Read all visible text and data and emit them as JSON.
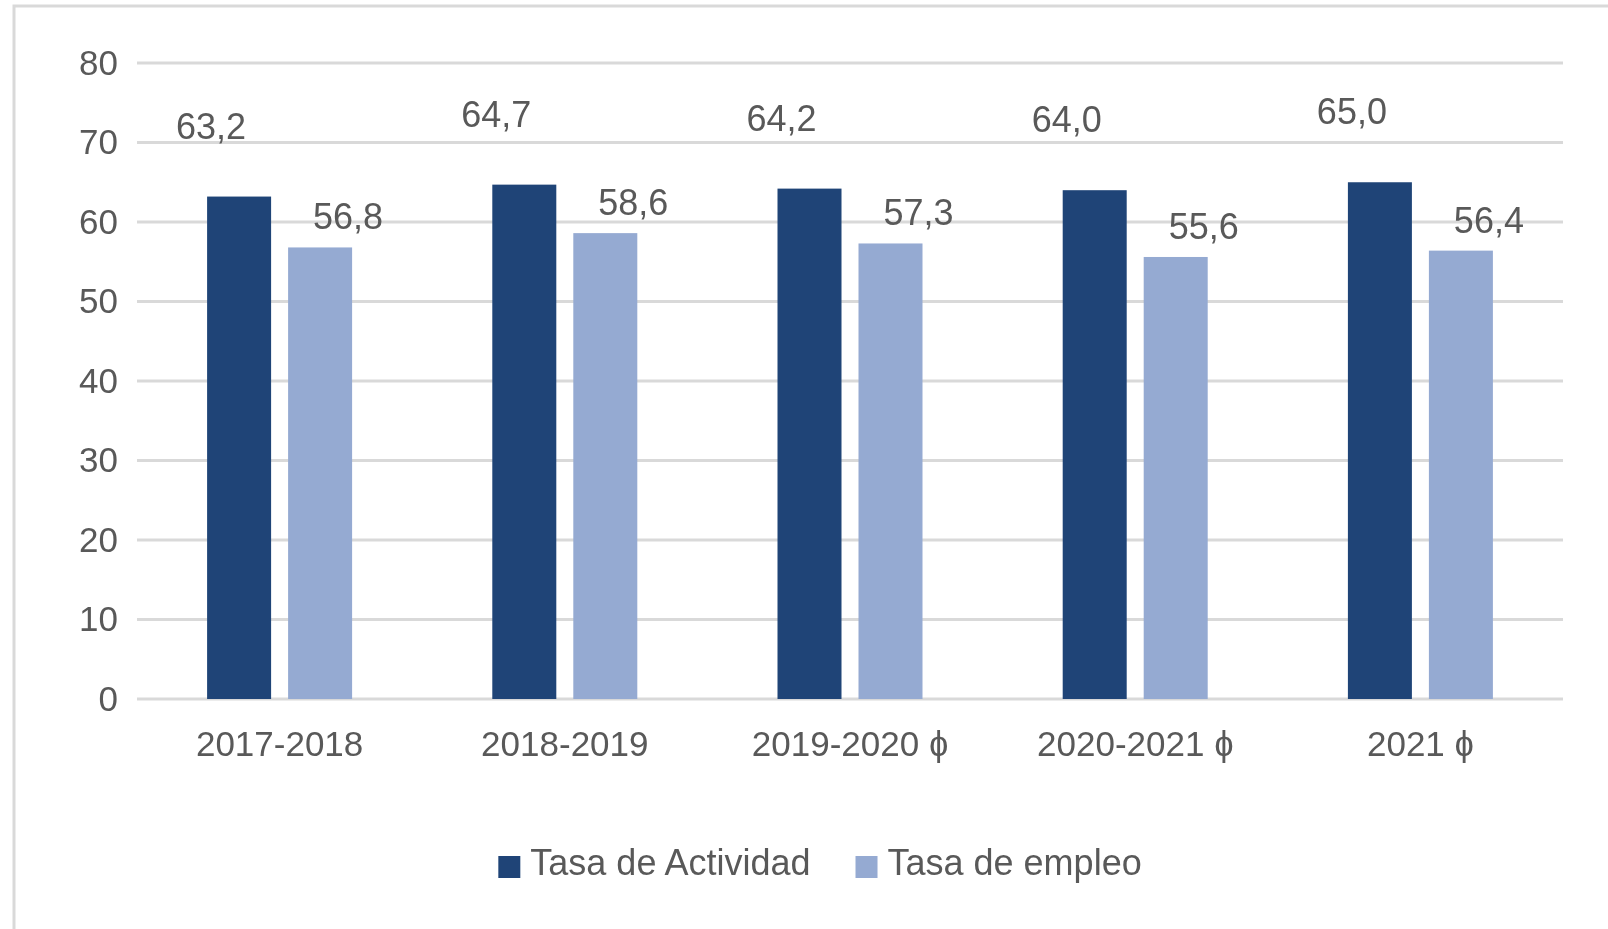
{
  "chart_data": {
    "type": "bar",
    "categories": [
      "2017-2018",
      "2018-2019",
      "2019-2020 ɸ",
      "2020-2021 ɸ",
      "2021 ɸ"
    ],
    "series": [
      {
        "name": "Tasa de Actividad",
        "color": "#1f4477",
        "values": [
          63.2,
          64.7,
          64.2,
          64.0,
          65.0
        ],
        "value_labels": [
          "63,2",
          "64,7",
          "64,2",
          "64,0",
          "65,0"
        ]
      },
      {
        "name": "Tasa de empleo",
        "color": "#95aad2",
        "values": [
          56.8,
          58.6,
          57.3,
          55.6,
          56.4
        ],
        "value_labels": [
          "56,8",
          "58,6",
          "57,3",
          "55,6",
          "56,4"
        ]
      }
    ],
    "ylim": [
      0,
      80
    ],
    "yticks": [
      0,
      10,
      20,
      30,
      40,
      50,
      60,
      70,
      80
    ],
    "grid": "y",
    "legend": "bottom"
  }
}
